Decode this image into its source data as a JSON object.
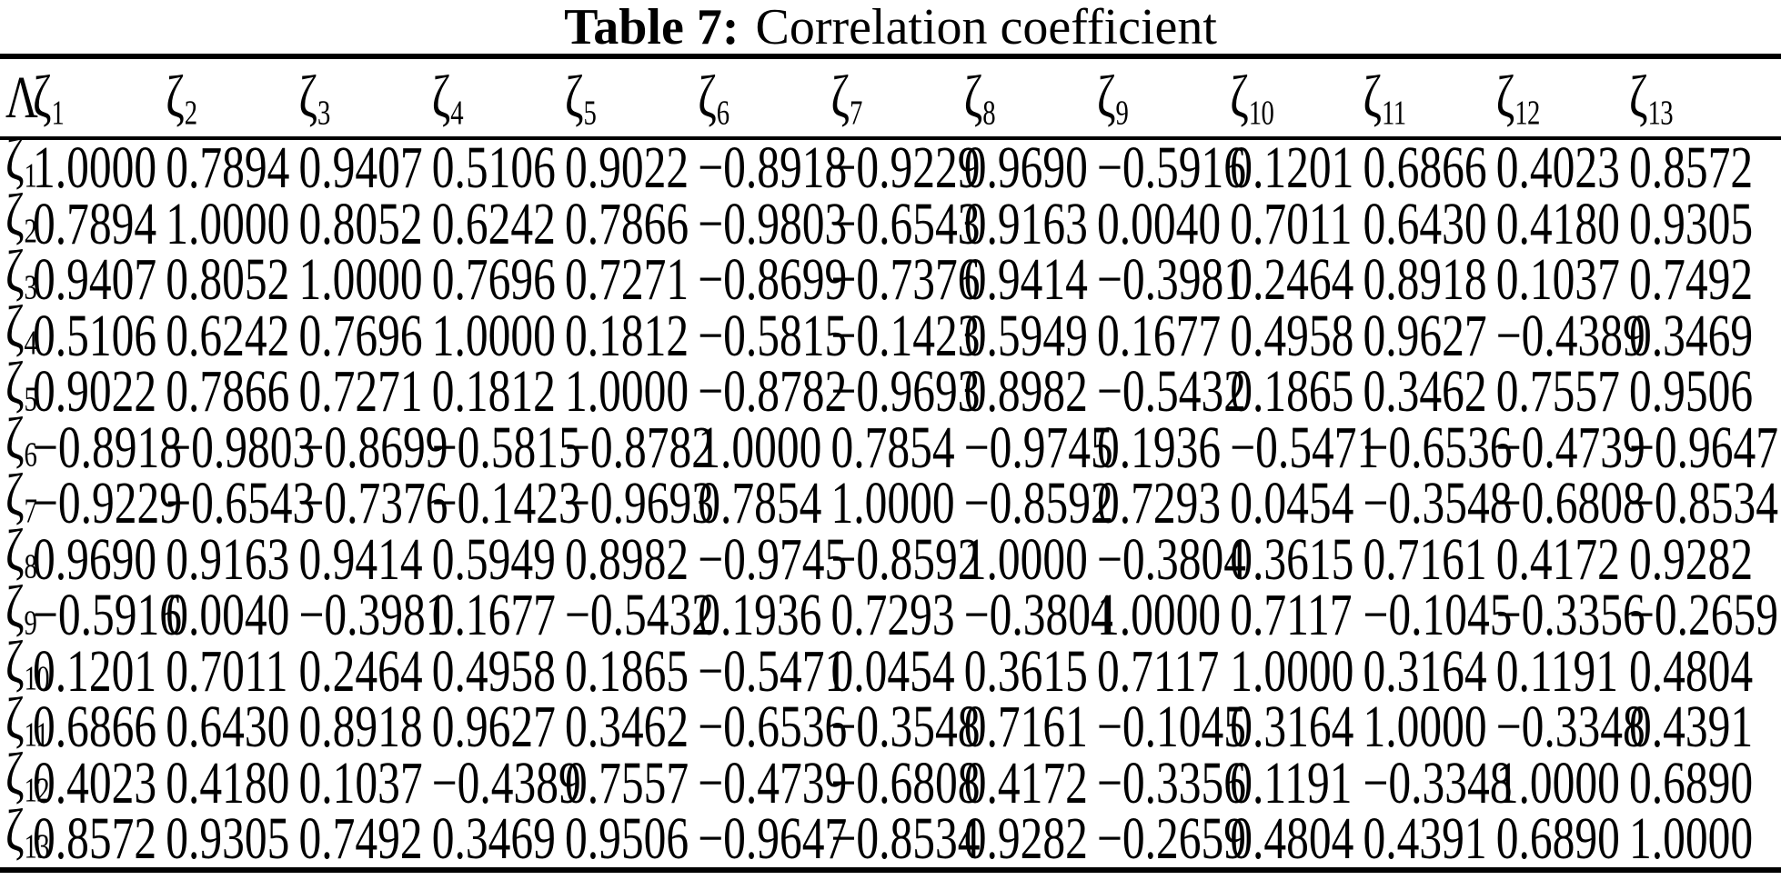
{
  "page": {
    "background": "#ffffff",
    "text_color": "#000000"
  },
  "title": {
    "label": "Table 7:",
    "text": "Correlation coefficient"
  },
  "table": {
    "corner_label": "Λ",
    "symbol": "ζ",
    "column_subs": [
      "1",
      "2",
      "3",
      "4",
      "5",
      "6",
      "7",
      "8",
      "9",
      "10",
      "11",
      "12",
      "13"
    ],
    "rows": [
      {
        "sub": "1",
        "values": [
          "1.0000",
          "0.7894",
          "0.9407",
          "0.5106",
          "0.9022",
          "−0.8918",
          "−0.9229",
          "0.9690",
          "−0.5916",
          "0.1201",
          "0.6866",
          "0.4023",
          "0.8572"
        ]
      },
      {
        "sub": "2",
        "values": [
          "0.7894",
          "1.0000",
          "0.8052",
          "0.6242",
          "0.7866",
          "−0.9803",
          "−0.6543",
          "0.9163",
          "0.0040",
          "0.7011",
          "0.6430",
          "0.4180",
          "0.9305"
        ]
      },
      {
        "sub": "3",
        "values": [
          "0.9407",
          "0.8052",
          "1.0000",
          "0.7696",
          "0.7271",
          "−0.8699",
          "−0.7376",
          "0.9414",
          "−0.3981",
          "0.2464",
          "0.8918",
          "0.1037",
          "0.7492"
        ]
      },
      {
        "sub": "4",
        "values": [
          "0.5106",
          "0.6242",
          "0.7696",
          "1.0000",
          "0.1812",
          "−0.5815",
          "−0.1423",
          "0.5949",
          "0.1677",
          "0.4958",
          "0.9627",
          "−0.4389",
          "0.3469"
        ]
      },
      {
        "sub": "5",
        "values": [
          "0.9022",
          "0.7866",
          "0.7271",
          "0.1812",
          "1.0000",
          "−0.8782",
          "−0.9693",
          "0.8982",
          "−0.5432",
          "0.1865",
          "0.3462",
          "0.7557",
          "0.9506"
        ]
      },
      {
        "sub": "6",
        "values": [
          "−0.8918",
          "−0.9803",
          "−0.8699",
          "−0.5815",
          "−0.8782",
          "1.0000",
          "0.7854",
          "−0.9745",
          "0.1936",
          "−0.5471",
          "−0.6536",
          "−0.4739",
          "−0.9647"
        ]
      },
      {
        "sub": "7",
        "values": [
          "−0.9229",
          "−0.6543",
          "−0.7376",
          "−0.1423",
          "−0.9693",
          "0.7854",
          "1.0000",
          "−0.8592",
          "0.7293",
          "0.0454",
          "−0.3548",
          "−0.6808",
          "−0.8534"
        ]
      },
      {
        "sub": "8",
        "values": [
          "0.9690",
          "0.9163",
          "0.9414",
          "0.5949",
          "0.8982",
          "−0.9745",
          "−0.8592",
          "1.0000",
          "−0.3804",
          "0.3615",
          "0.7161",
          "0.4172",
          "0.9282"
        ]
      },
      {
        "sub": "9",
        "values": [
          "−0.5916",
          "0.0040",
          "−0.3981",
          "0.1677",
          "−0.5432",
          "0.1936",
          "0.7293",
          "−0.3804",
          "1.0000",
          "0.7117",
          "−0.1045",
          "−0.3356",
          "−0.2659"
        ]
      },
      {
        "sub": "10",
        "values": [
          "0.1201",
          "0.7011",
          "0.2464",
          "0.4958",
          "0.1865",
          "−0.5471",
          "0.0454",
          "0.3615",
          "0.7117",
          "1.0000",
          "0.3164",
          "0.1191",
          "0.4804"
        ]
      },
      {
        "sub": "11",
        "values": [
          "0.6866",
          "0.6430",
          "0.8918",
          "0.9627",
          "0.3462",
          "−0.6536",
          "−0.3548",
          "0.7161",
          "−0.1045",
          "0.3164",
          "1.0000",
          "−0.3348",
          "0.4391"
        ]
      },
      {
        "sub": "12",
        "values": [
          "0.4023",
          "0.4180",
          "0.1037",
          "−0.4389",
          "0.7557",
          "−0.4739",
          "−0.6808",
          "0.4172",
          "−0.3356",
          "0.1191",
          "−0.3348",
          "1.0000",
          "0.6890"
        ]
      },
      {
        "sub": "13",
        "values": [
          "0.8572",
          "0.9305",
          "0.7492",
          "0.3469",
          "0.9506",
          "−0.9647",
          "−0.8534",
          "0.9282",
          "−0.2659",
          "0.4804",
          "0.4391",
          "0.6890",
          "1.0000"
        ]
      }
    ]
  }
}
